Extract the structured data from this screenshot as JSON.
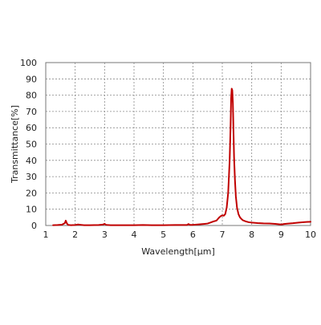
{
  "chart_data": {
    "type": "line",
    "xlabel": "Wavelength[μm]",
    "ylabel": "Transmittance[%]",
    "xlim": [
      1,
      10
    ],
    "ylim": [
      0,
      100
    ],
    "x_ticks": [
      1,
      2,
      3,
      4,
      5,
      6,
      7,
      8,
      9,
      10
    ],
    "y_ticks": [
      0,
      10,
      20,
      30,
      40,
      50,
      60,
      70,
      80,
      90,
      100
    ],
    "grid": true,
    "line_color": "#c00000",
    "series": [
      {
        "x": [
          1.25,
          1.4,
          1.55,
          1.6,
          1.65,
          1.68,
          1.72,
          1.76,
          1.85,
          2.0,
          2.1,
          2.2,
          2.3,
          2.5,
          2.8,
          2.95,
          3.0,
          3.05,
          3.2,
          3.5,
          4.0,
          4.3,
          4.6,
          5.0,
          5.4,
          5.8,
          5.85,
          5.9,
          6.0,
          6.2,
          6.4,
          6.5,
          6.6,
          6.7,
          6.8,
          6.85,
          6.9,
          6.95,
          7.0,
          7.05,
          7.1,
          7.15,
          7.2,
          7.25,
          7.28,
          7.3,
          7.32,
          7.34,
          7.36,
          7.38,
          7.4,
          7.43,
          7.46,
          7.5,
          7.55,
          7.6,
          7.65,
          7.7,
          7.8,
          7.9,
          8.0,
          8.2,
          8.4,
          8.6,
          8.8,
          8.9,
          9.0,
          9.1,
          9.2,
          9.4,
          9.6,
          9.8,
          10.0
        ],
        "y": [
          0.2,
          0.3,
          0.5,
          1.0,
          1.5,
          3.0,
          1.2,
          0.4,
          0.2,
          0.3,
          0.6,
          0.4,
          0.2,
          0.2,
          0.3,
          0.6,
          1.0,
          0.4,
          0.2,
          0.2,
          0.2,
          0.3,
          0.2,
          0.2,
          0.3,
          0.3,
          0.9,
          0.4,
          0.4,
          0.7,
          1.0,
          1.2,
          1.8,
          2.5,
          3.0,
          4.0,
          5.0,
          5.8,
          6.2,
          6.0,
          7.0,
          11.0,
          20.0,
          40.0,
          60.0,
          78.0,
          84.0,
          83.0,
          75.0,
          58.0,
          42.0,
          28.0,
          18.0,
          11.0,
          7.0,
          5.0,
          4.0,
          3.2,
          2.5,
          2.0,
          1.8,
          1.5,
          1.3,
          1.2,
          1.0,
          0.8,
          0.6,
          0.9,
          1.1,
          1.4,
          1.8,
          2.1,
          2.3
        ]
      }
    ]
  }
}
